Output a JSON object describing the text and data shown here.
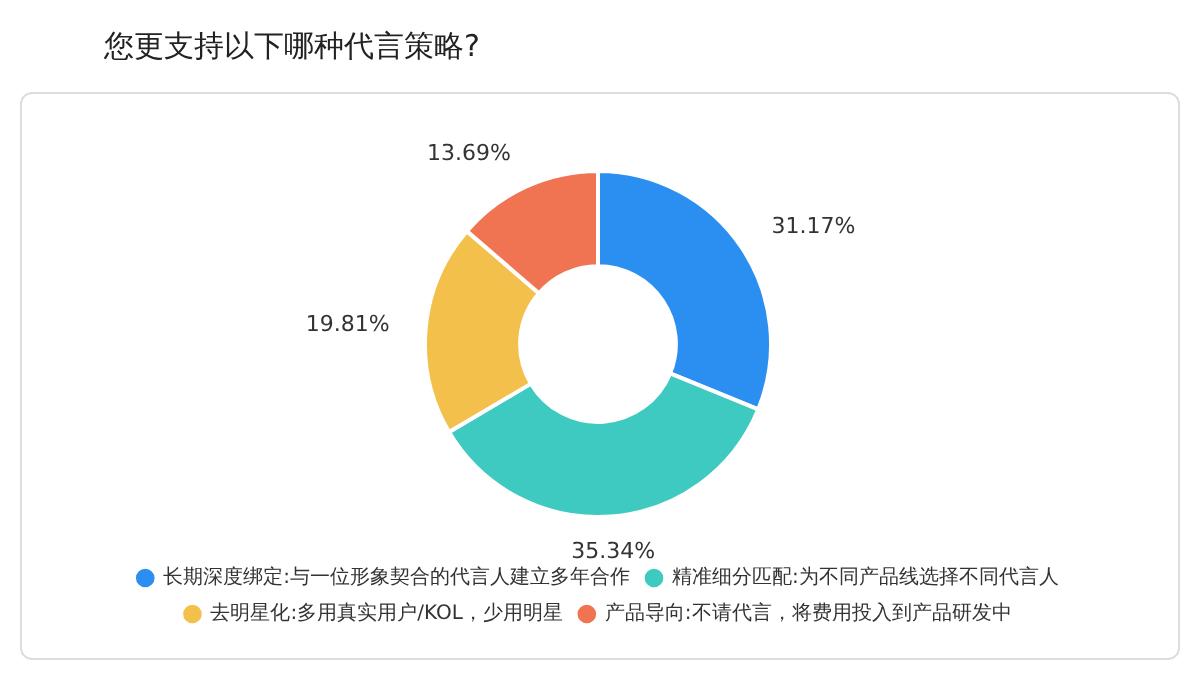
{
  "chart_data": {
    "type": "donut",
    "title": "您更支持以下哪种代言策略?",
    "categories": [
      "长期深度绑定:与一位形象契合的代言人建立多年合作",
      "精准细分匹配:为不同产品线选择不同代言人",
      "去明星化:多用真实用户/KOL，少用明星",
      "产品导向:不请代言，将费用投入到产品研发中"
    ],
    "values": [
      31.17,
      35.34,
      19.81,
      13.69
    ],
    "colors": [
      "#2b8ff2",
      "#3ec9c1",
      "#f4c04c",
      "#f07451"
    ],
    "value_labels": [
      "31.17%",
      "35.34%",
      "19.81%",
      "13.69%"
    ],
    "legend": "bottom"
  }
}
